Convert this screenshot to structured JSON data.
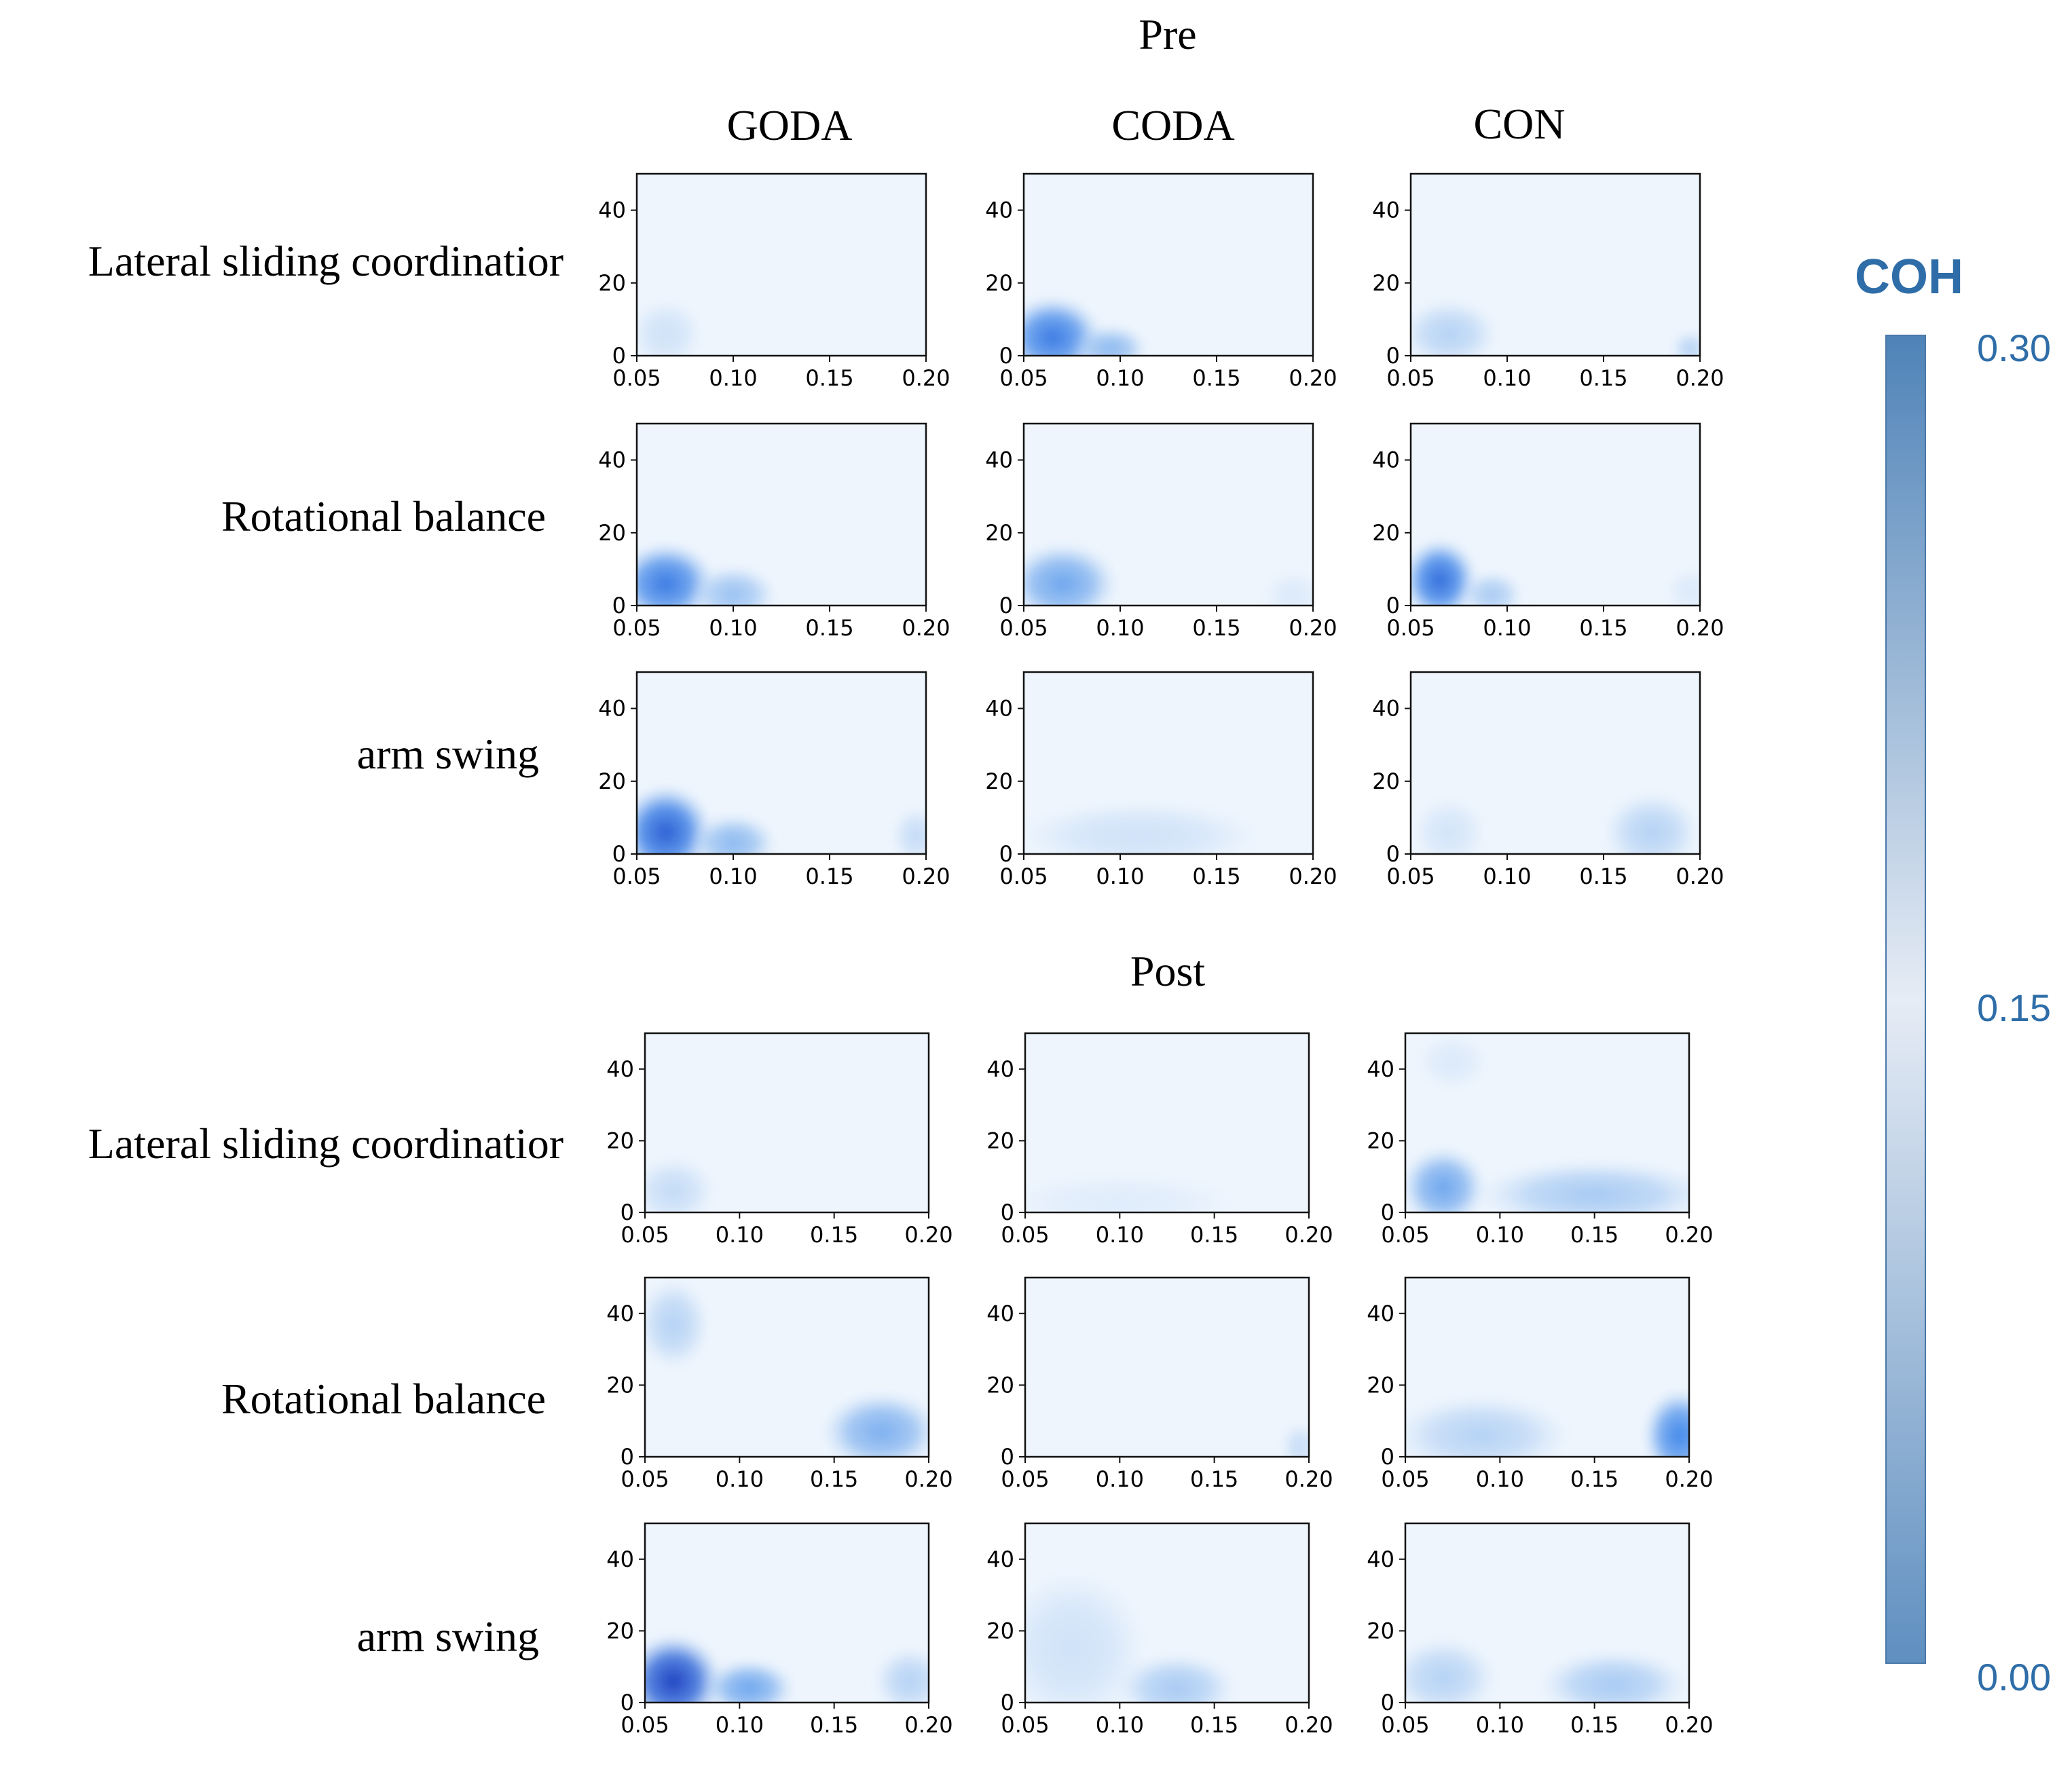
{
  "chart_data": {
    "type": "heatmap",
    "panel_sections": [
      {
        "title": "Pre",
        "columns": [
          "GODA",
          "CODA",
          "CON"
        ],
        "rows": [
          "Lateral sliding coordinatior",
          "Rotational balance",
          "arm swing"
        ]
      },
      {
        "title": "Post",
        "columns": [
          "GODA",
          "CODA",
          "CON"
        ],
        "rows": [
          "Lateral sliding coordinatior",
          "Rotational balance",
          "arm swing"
        ]
      }
    ],
    "x_ticks": [
      "0.05",
      "0.10",
      "0.15",
      "0.20"
    ],
    "y_ticks": [
      "0",
      "20",
      "40"
    ],
    "xlim": [
      0.05,
      0.2
    ],
    "ylim": [
      0,
      50
    ],
    "colorbar": {
      "label": "COH",
      "ticks": [
        "0.30",
        "0.15",
        "0.00"
      ],
      "range": [
        0,
        0.3
      ],
      "colors": {
        "high": "#4f83b8",
        "mid": "#e6ecf5",
        "low": "#5f8fc0"
      }
    },
    "colors": {
      "background": "#eef5fd",
      "weak": "#cfe2f8",
      "moderate": "#8ab8f0",
      "strong": "#3f86ea",
      "peak": "#1f3fc0"
    },
    "panels": [
      {
        "section": "Pre",
        "row": "Lateral sliding coordinatior",
        "column": "GODA",
        "blobs": [
          {
            "x": 0.065,
            "y": 6,
            "sx": 0.012,
            "sy": 6,
            "a": 0.25
          }
        ]
      },
      {
        "section": "Pre",
        "row": "Lateral sliding coordinatior",
        "column": "CODA",
        "blobs": [
          {
            "x": 0.065,
            "y": 5,
            "sx": 0.016,
            "sy": 7,
            "a": 0.8
          },
          {
            "x": 0.095,
            "y": 2,
            "sx": 0.012,
            "sy": 4,
            "a": 0.5
          }
        ]
      },
      {
        "section": "Pre",
        "row": "Lateral sliding coordinatior",
        "column": "CON",
        "blobs": [
          {
            "x": 0.07,
            "y": 6,
            "sx": 0.016,
            "sy": 6,
            "a": 0.35
          },
          {
            "x": 0.195,
            "y": 2,
            "sx": 0.006,
            "sy": 3,
            "a": 0.35
          }
        ]
      },
      {
        "section": "Pre",
        "row": "Rotational balance",
        "column": "GODA",
        "blobs": [
          {
            "x": 0.065,
            "y": 6,
            "sx": 0.016,
            "sy": 7,
            "a": 0.8
          },
          {
            "x": 0.1,
            "y": 3,
            "sx": 0.014,
            "sy": 5,
            "a": 0.45
          }
        ]
      },
      {
        "section": "Pre",
        "row": "Rotational balance",
        "column": "CODA",
        "blobs": [
          {
            "x": 0.07,
            "y": 6,
            "sx": 0.018,
            "sy": 7,
            "a": 0.6
          },
          {
            "x": 0.19,
            "y": 3,
            "sx": 0.01,
            "sy": 4,
            "a": 0.15
          }
        ]
      },
      {
        "section": "Pre",
        "row": "Rotational balance",
        "column": "CON",
        "blobs": [
          {
            "x": 0.065,
            "y": 7,
            "sx": 0.012,
            "sy": 7,
            "a": 0.85
          },
          {
            "x": 0.092,
            "y": 3,
            "sx": 0.01,
            "sy": 4,
            "a": 0.4
          },
          {
            "x": 0.195,
            "y": 4,
            "sx": 0.008,
            "sy": 4,
            "a": 0.15
          }
        ]
      },
      {
        "section": "Pre",
        "row": "arm swing",
        "column": "GODA",
        "blobs": [
          {
            "x": 0.065,
            "y": 6,
            "sx": 0.015,
            "sy": 8,
            "a": 0.9
          },
          {
            "x": 0.1,
            "y": 3,
            "sx": 0.014,
            "sy": 5,
            "a": 0.5
          },
          {
            "x": 0.195,
            "y": 5,
            "sx": 0.008,
            "sy": 5,
            "a": 0.3
          }
        ]
      },
      {
        "section": "Pre",
        "row": "arm swing",
        "column": "CODA",
        "blobs": [
          {
            "x": 0.11,
            "y": 5,
            "sx": 0.04,
            "sy": 6,
            "a": 0.25
          }
        ]
      },
      {
        "section": "Pre",
        "row": "arm swing",
        "column": "CON",
        "blobs": [
          {
            "x": 0.07,
            "y": 6,
            "sx": 0.012,
            "sy": 6,
            "a": 0.22
          },
          {
            "x": 0.175,
            "y": 6,
            "sx": 0.016,
            "sy": 7,
            "a": 0.35
          }
        ]
      },
      {
        "section": "Post",
        "row": "Lateral sliding coordinatior",
        "column": "GODA",
        "blobs": [
          {
            "x": 0.065,
            "y": 6,
            "sx": 0.014,
            "sy": 6,
            "a": 0.3
          }
        ]
      },
      {
        "section": "Post",
        "row": "Lateral sliding coordinatior",
        "column": "CODA",
        "blobs": [
          {
            "x": 0.1,
            "y": 3,
            "sx": 0.04,
            "sy": 5,
            "a": 0.12
          }
        ]
      },
      {
        "section": "Post",
        "row": "Lateral sliding coordinatior",
        "column": "CON",
        "blobs": [
          {
            "x": 0.07,
            "y": 7,
            "sx": 0.014,
            "sy": 7,
            "a": 0.6
          },
          {
            "x": 0.15,
            "y": 5,
            "sx": 0.04,
            "sy": 6,
            "a": 0.4
          },
          {
            "x": 0.075,
            "y": 42,
            "sx": 0.012,
            "sy": 5,
            "a": 0.15
          }
        ]
      },
      {
        "section": "Post",
        "row": "Rotational balance",
        "column": "GODA",
        "blobs": [
          {
            "x": 0.065,
            "y": 37,
            "sx": 0.012,
            "sy": 8,
            "a": 0.35
          },
          {
            "x": 0.175,
            "y": 7,
            "sx": 0.02,
            "sy": 7,
            "a": 0.55
          }
        ]
      },
      {
        "section": "Post",
        "row": "Rotational balance",
        "column": "CODA",
        "blobs": [
          {
            "x": 0.195,
            "y": 3,
            "sx": 0.006,
            "sy": 4,
            "a": 0.3
          }
        ]
      },
      {
        "section": "Post",
        "row": "Rotational balance",
        "column": "CON",
        "blobs": [
          {
            "x": 0.09,
            "y": 6,
            "sx": 0.03,
            "sy": 7,
            "a": 0.35
          },
          {
            "x": 0.195,
            "y": 6,
            "sx": 0.012,
            "sy": 8,
            "a": 0.75
          }
        ]
      },
      {
        "section": "Post",
        "row": "arm swing",
        "column": "GODA",
        "blobs": [
          {
            "x": 0.065,
            "y": 6,
            "sx": 0.016,
            "sy": 8,
            "a": 1.0
          },
          {
            "x": 0.105,
            "y": 4,
            "sx": 0.015,
            "sy": 5,
            "a": 0.6
          },
          {
            "x": 0.19,
            "y": 6,
            "sx": 0.012,
            "sy": 6,
            "a": 0.35
          }
        ]
      },
      {
        "section": "Post",
        "row": "arm swing",
        "column": "CODA",
        "blobs": [
          {
            "x": 0.075,
            "y": 15,
            "sx": 0.025,
            "sy": 14,
            "a": 0.25
          },
          {
            "x": 0.13,
            "y": 4,
            "sx": 0.02,
            "sy": 6,
            "a": 0.4
          }
        ]
      },
      {
        "section": "Post",
        "row": "arm swing",
        "column": "CON",
        "blobs": [
          {
            "x": 0.07,
            "y": 7,
            "sx": 0.018,
            "sy": 7,
            "a": 0.35
          },
          {
            "x": 0.16,
            "y": 5,
            "sx": 0.025,
            "sy": 6,
            "a": 0.4
          }
        ]
      }
    ]
  }
}
